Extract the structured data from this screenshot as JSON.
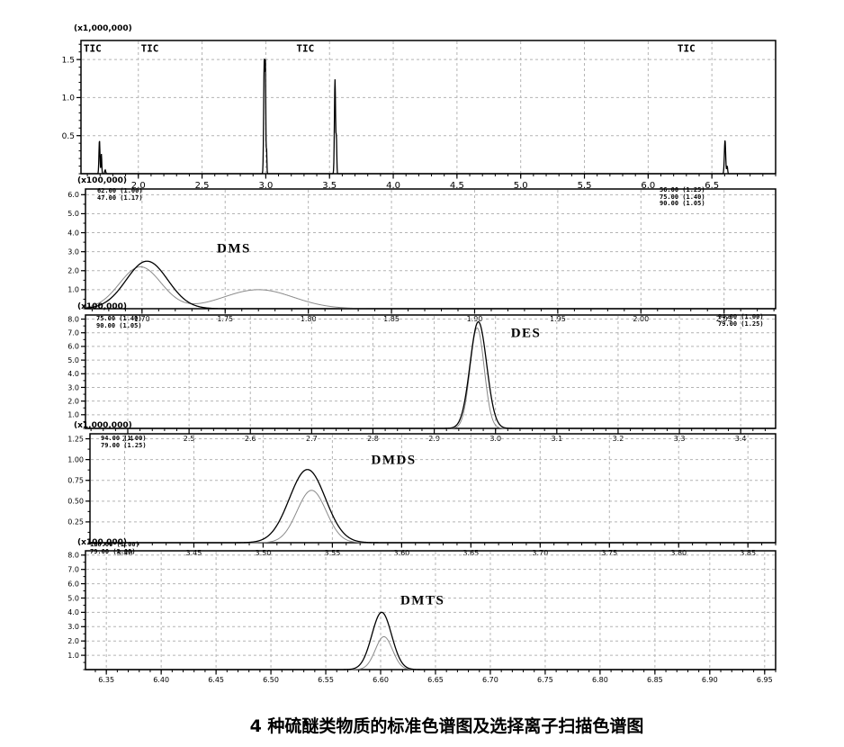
{
  "caption": "4 种硫醚类物质的标准色谱图及选择离子扫描色谱图",
  "colors": {
    "background": "#ffffff",
    "curve_primary": "#000000",
    "curve_secondary": "#8a8a8a",
    "grid": "#b4b4b4",
    "axis": "#000000",
    "text": "#000000"
  },
  "chart_data": [
    {
      "id": "tic",
      "type": "line",
      "title": "TIC",
      "scale_label": "(x1,000,000)",
      "x_range": [
        1.55,
        7.0
      ],
      "y_range": [
        0,
        1.75
      ],
      "x_minor_step": 0.1,
      "y_minor_step": 0.1,
      "x_ticks": [
        {
          "v": 2.0,
          "label": "2.0"
        },
        {
          "v": 2.5,
          "label": "2.5"
        },
        {
          "v": 3.0,
          "label": "3.0"
        },
        {
          "v": 3.5,
          "label": "3.5"
        },
        {
          "v": 4.0,
          "label": "4.0"
        },
        {
          "v": 4.5,
          "label": "4.5"
        },
        {
          "v": 5.0,
          "label": "5.0"
        },
        {
          "v": 5.5,
          "label": "5.5"
        },
        {
          "v": 6.0,
          "label": "6.0"
        },
        {
          "v": 6.5,
          "label": "6.5"
        }
      ],
      "y_ticks": [
        {
          "v": 0.5,
          "label": "0.5"
        },
        {
          "v": 1.0,
          "label": "1.0"
        },
        {
          "v": 1.5,
          "label": "1.5"
        }
      ],
      "annotations": [
        {
          "text": "TIC",
          "x": 1.57,
          "y": 1.6,
          "style": "tic"
        },
        {
          "text": "TIC",
          "x": 2.02,
          "y": 1.6,
          "style": "tic"
        },
        {
          "text": "TIC",
          "x": 3.24,
          "y": 1.6,
          "style": "tic"
        },
        {
          "text": "TIC",
          "x": 6.23,
          "y": 1.6,
          "style": "tic"
        }
      ],
      "legend_left": [],
      "legend_right": [],
      "series": [
        {
          "name": "TIC",
          "color_role": "curve_primary",
          "stroke_width": 1.3,
          "peaks": [
            {
              "rt": 1.695,
              "height": 0.44,
              "sigma": 0.004
            },
            {
              "rt": 1.71,
              "height": 0.26,
              "sigma": 0.003
            },
            {
              "rt": 1.74,
              "height": 0.05,
              "sigma": 0.004
            },
            {
              "rt": 2.988,
              "height": 1.5,
              "sigma": 0.0045
            },
            {
              "rt": 2.997,
              "height": 1.32,
              "sigma": 0.003
            },
            {
              "rt": 3.006,
              "height": 0.33,
              "sigma": 0.0025
            },
            {
              "rt": 3.543,
              "height": 1.24,
              "sigma": 0.0045
            },
            {
              "rt": 3.554,
              "height": 0.44,
              "sigma": 0.003
            },
            {
              "rt": 6.603,
              "height": 0.44,
              "sigma": 0.005
            },
            {
              "rt": 6.62,
              "height": 0.1,
              "sigma": 0.0035
            }
          ]
        }
      ]
    },
    {
      "id": "dms",
      "type": "line",
      "title": "DMS",
      "scale_label": "(x100,000)",
      "x_range": [
        1.666,
        2.081
      ],
      "y_range": [
        0,
        6.3
      ],
      "x_minor_step": 0.01,
      "y_minor_step": 0.5,
      "x_ticks": [
        {
          "v": 1.7,
          "label": "1.70"
        },
        {
          "v": 1.75,
          "label": "1.75"
        },
        {
          "v": 1.8,
          "label": "1.80"
        },
        {
          "v": 1.85,
          "label": "1.85"
        },
        {
          "v": 1.9,
          "label": "1.90"
        },
        {
          "v": 1.95,
          "label": "1.95"
        },
        {
          "v": 2.0,
          "label": "2.00"
        },
        {
          "v": 2.05,
          "label": "2.05"
        }
      ],
      "y_ticks": [
        {
          "v": 1.0,
          "label": "1.0"
        },
        {
          "v": 2.0,
          "label": "2.0"
        },
        {
          "v": 3.0,
          "label": "3.0"
        },
        {
          "v": 4.0,
          "label": "4.0"
        },
        {
          "v": 5.0,
          "label": "5.0"
        },
        {
          "v": 6.0,
          "label": "6.0"
        }
      ],
      "annotations": [
        {
          "text": "DMS",
          "x": 1.745,
          "y": 2.95,
          "style": "compound"
        }
      ],
      "legend_left": [
        "62.00 (1.00)",
        "47.00 (1.17)"
      ],
      "legend_right": [
        "56.00 (1.25)",
        "75.00 (1.40)",
        "90.00 (1.05)"
      ],
      "series": [
        {
          "name": "DMS-qualifier",
          "color_role": "curve_secondary",
          "stroke_width": 1,
          "peaks": [
            {
              "rt": 1.699,
              "height": 2.2,
              "sigma": 0.0125
            },
            {
              "rt": 1.77,
              "height": 1.0,
              "sigma": 0.021
            }
          ]
        },
        {
          "name": "DMS-quantifier",
          "color_role": "curve_primary",
          "stroke_width": 1.3,
          "peaks": [
            {
              "rt": 1.703,
              "height": 2.5,
              "sigma": 0.0125
            }
          ]
        }
      ]
    },
    {
      "id": "des",
      "type": "line",
      "title": "DES",
      "scale_label": "(x100,000)",
      "x_range": [
        2.331,
        3.457
      ],
      "y_range": [
        0,
        8.3
      ],
      "x_minor_step": 0.02,
      "y_minor_step": 0.5,
      "x_ticks": [
        {
          "v": 2.4,
          "label": "2.4"
        },
        {
          "v": 2.5,
          "label": "2.5"
        },
        {
          "v": 2.6,
          "label": "2.6"
        },
        {
          "v": 2.7,
          "label": "2.7"
        },
        {
          "v": 2.8,
          "label": "2.8"
        },
        {
          "v": 2.9,
          "label": "2.9"
        },
        {
          "v": 3.0,
          "label": "3.0"
        },
        {
          "v": 3.1,
          "label": "3.1"
        },
        {
          "v": 3.2,
          "label": "3.2"
        },
        {
          "v": 3.3,
          "label": "3.3"
        },
        {
          "v": 3.4,
          "label": "3.4"
        }
      ],
      "y_ticks": [
        {
          "v": 1.0,
          "label": "1.0"
        },
        {
          "v": 2.0,
          "label": "2.0"
        },
        {
          "v": 3.0,
          "label": "3.0"
        },
        {
          "v": 4.0,
          "label": "4.0"
        },
        {
          "v": 5.0,
          "label": "5.0"
        },
        {
          "v": 6.0,
          "label": "6.0"
        },
        {
          "v": 7.0,
          "label": "7.0"
        },
        {
          "v": 8.0,
          "label": "8.0"
        }
      ],
      "annotations": [
        {
          "text": "DES",
          "x": 3.025,
          "y": 6.7,
          "style": "compound"
        }
      ],
      "legend_left": [
        "75.00 (1.40)",
        "90.00 (1.05)"
      ],
      "legend_right": [
        "94.00 (1.00)",
        "79.00 (1.25)"
      ],
      "series": [
        {
          "name": "DES-qualifier",
          "color_role": "curve_secondary",
          "stroke_width": 1,
          "peaks": [
            {
              "rt": 2.97,
              "height": 7.35,
              "sigma": 0.0115
            }
          ]
        },
        {
          "name": "DES-quantifier",
          "color_role": "curve_primary",
          "stroke_width": 1.3,
          "peaks": [
            {
              "rt": 2.972,
              "height": 7.8,
              "sigma": 0.0135
            }
          ]
        }
      ]
    },
    {
      "id": "dmds",
      "type": "line",
      "title": "DMDS",
      "scale_label": "(x1,000,000)",
      "x_range": [
        3.375,
        3.87
      ],
      "y_range": [
        0,
        1.31
      ],
      "x_minor_step": 0.01,
      "y_minor_step": 0.125,
      "x_ticks": [
        {
          "v": 3.4,
          "label": "3.40"
        },
        {
          "v": 3.45,
          "label": "3.45"
        },
        {
          "v": 3.5,
          "label": "3.50"
        },
        {
          "v": 3.55,
          "label": "3.55"
        },
        {
          "v": 3.6,
          "label": "3.60"
        },
        {
          "v": 3.65,
          "label": "3.65"
        },
        {
          "v": 3.7,
          "label": "3.70"
        },
        {
          "v": 3.75,
          "label": "3.75"
        },
        {
          "v": 3.8,
          "label": "3.80"
        },
        {
          "v": 3.85,
          "label": "3.85"
        }
      ],
      "y_ticks": [
        {
          "v": 0.25,
          "label": "0.25"
        },
        {
          "v": 0.5,
          "label": "0.50"
        },
        {
          "v": 0.75,
          "label": "0.75"
        },
        {
          "v": 1.0,
          "label": "1.00"
        },
        {
          "v": 1.25,
          "label": "1.25"
        }
      ],
      "annotations": [
        {
          "text": "DMDS",
          "x": 3.578,
          "y": 0.95,
          "style": "compound"
        }
      ],
      "legend_left": [
        "94.00 (1.00)",
        "79.00 (1.25)"
      ],
      "legend_right": [],
      "series": [
        {
          "name": "DMDS-qualifier",
          "color_role": "curve_secondary",
          "stroke_width": 1,
          "peaks": [
            {
              "rt": 3.535,
              "height": 0.63,
              "sigma": 0.0105
            }
          ]
        },
        {
          "name": "DMDS-quantifier",
          "color_role": "curve_primary",
          "stroke_width": 1.3,
          "peaks": [
            {
              "rt": 3.532,
              "height": 0.88,
              "sigma": 0.013
            }
          ]
        }
      ]
    },
    {
      "id": "dmts",
      "type": "line",
      "title": "DMTS",
      "scale_label": "(x100,000)",
      "x_range": [
        6.331,
        6.96
      ],
      "y_range": [
        0,
        8.3
      ],
      "x_minor_step": 0.01,
      "y_minor_step": 0.5,
      "x_ticks": [
        {
          "v": 6.35,
          "label": "6.35"
        },
        {
          "v": 6.4,
          "label": "6.40"
        },
        {
          "v": 6.45,
          "label": "6.45"
        },
        {
          "v": 6.5,
          "label": "6.50"
        },
        {
          "v": 6.55,
          "label": "6.55"
        },
        {
          "v": 6.6,
          "label": "6.60"
        },
        {
          "v": 6.65,
          "label": "6.65"
        },
        {
          "v": 6.7,
          "label": "6.70"
        },
        {
          "v": 6.75,
          "label": "6.75"
        },
        {
          "v": 6.8,
          "label": "6.80"
        },
        {
          "v": 6.85,
          "label": "6.85"
        },
        {
          "v": 6.9,
          "label": "6.90"
        },
        {
          "v": 6.95,
          "label": "6.95"
        }
      ],
      "y_ticks": [
        {
          "v": 1.0,
          "label": "1.0"
        },
        {
          "v": 2.0,
          "label": "2.0"
        },
        {
          "v": 3.0,
          "label": "3.0"
        },
        {
          "v": 4.0,
          "label": "4.0"
        },
        {
          "v": 5.0,
          "label": "5.0"
        },
        {
          "v": 6.0,
          "label": "6.0"
        },
        {
          "v": 7.0,
          "label": "7.0"
        },
        {
          "v": 8.0,
          "label": "8.0"
        }
      ],
      "annotations": [
        {
          "text": "DMTS",
          "x": 6.618,
          "y": 4.55,
          "style": "compound"
        }
      ],
      "legend_left": [
        "126.00 (1.00)",
        "79.00 (2.00)"
      ],
      "legend_right": [],
      "series": [
        {
          "name": "DMTS-qualifier",
          "color_role": "curve_secondary",
          "stroke_width": 1,
          "peaks": [
            {
              "rt": 6.603,
              "height": 2.3,
              "sigma": 0.0078
            }
          ]
        },
        {
          "name": "DMTS-quantifier",
          "color_role": "curve_primary",
          "stroke_width": 1.3,
          "peaks": [
            {
              "rt": 6.601,
              "height": 4.0,
              "sigma": 0.009
            }
          ]
        }
      ]
    }
  ]
}
